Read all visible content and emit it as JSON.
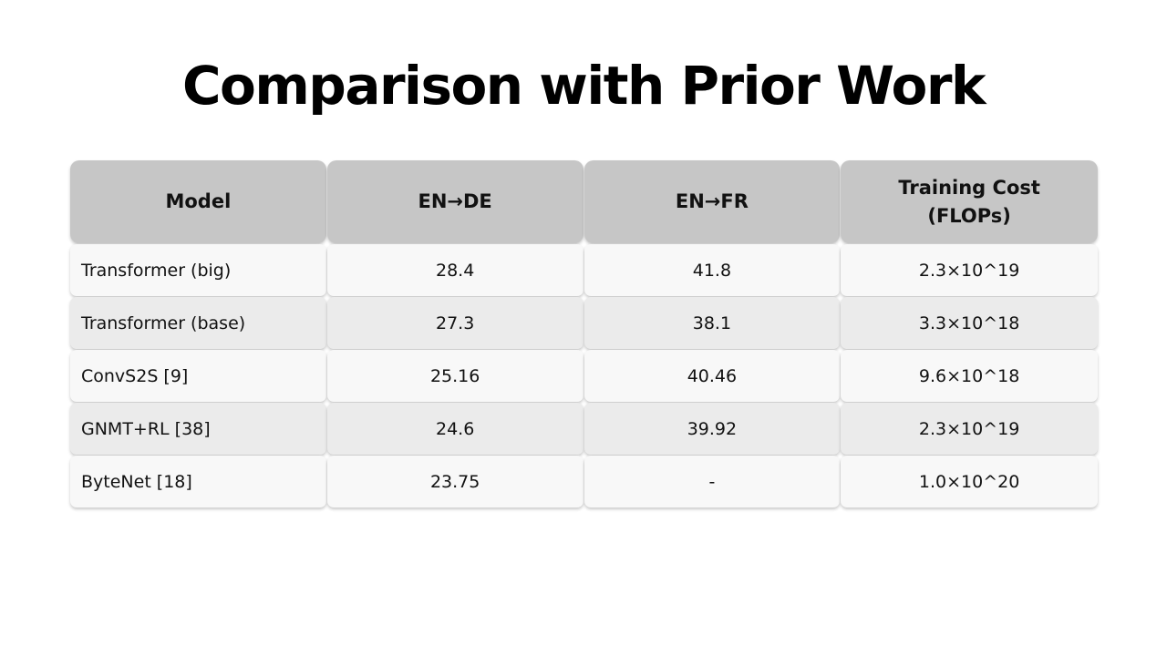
{
  "title": "Comparison with Prior Work",
  "table": {
    "headers": [
      "Model",
      "EN→DE",
      "EN→FR",
      "Training Cost\n(FLOPs)"
    ],
    "rows": [
      [
        "Transformer (big)",
        "28.4",
        "41.8",
        "2.3×10^19"
      ],
      [
        "Transformer (base)",
        "27.3",
        "38.1",
        "3.3×10^18"
      ],
      [
        "ConvS2S [9]",
        "25.16",
        "40.46",
        "9.6×10^18"
      ],
      [
        "GNMT+RL [38]",
        "24.6",
        "39.92",
        "2.3×10^19"
      ],
      [
        "ByteNet [18]",
        "23.75",
        "-",
        "1.0×10^20"
      ]
    ],
    "colors": {
      "header_bg": "#c6c6c6",
      "row_light": "#f8f8f8",
      "row_dark": "#ebebeb"
    }
  }
}
